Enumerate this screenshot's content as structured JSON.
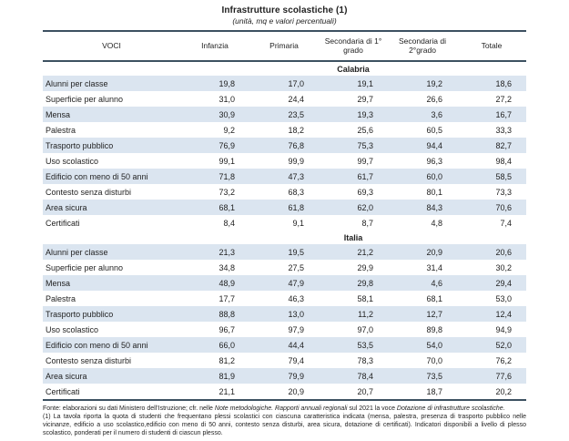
{
  "page": {
    "title": "Infrastrutture scolastiche (1)",
    "subtitle": "(unità, mq e valori percentuali)"
  },
  "table": {
    "columns": [
      "VOCI",
      "Infanzia",
      "Primaria",
      "Secondaria di 1° grado",
      "Secondaria di 2°grado",
      "Totale"
    ],
    "sections": [
      {
        "name": "Calabria",
        "rows": [
          {
            "label": "Alunni per classe",
            "values": [
              "19,8",
              "17,0",
              "19,1",
              "19,2",
              "18,6"
            ]
          },
          {
            "label": "Superficie per alunno",
            "values": [
              "31,0",
              "24,4",
              "29,7",
              "26,6",
              "27,2"
            ]
          },
          {
            "label": "Mensa",
            "values": [
              "30,9",
              "23,5",
              "19,3",
              "3,6",
              "16,7"
            ]
          },
          {
            "label": "Palestra",
            "values": [
              "9,2",
              "18,2",
              "25,6",
              "60,5",
              "33,3"
            ]
          },
          {
            "label": "Trasporto pubblico",
            "values": [
              "76,9",
              "76,8",
              "75,3",
              "94,4",
              "82,7"
            ]
          },
          {
            "label": "Uso scolastico",
            "values": [
              "99,1",
              "99,9",
              "99,7",
              "96,3",
              "98,4"
            ]
          },
          {
            "label": "Edificio con meno di 50 anni",
            "values": [
              "71,8",
              "47,3",
              "61,7",
              "60,0",
              "58,5"
            ]
          },
          {
            "label": "Contesto senza disturbi",
            "values": [
              "73,2",
              "68,3",
              "69,3",
              "80,1",
              "73,3"
            ]
          },
          {
            "label": "Area sicura",
            "values": [
              "68,1",
              "61,8",
              "62,0",
              "84,3",
              "70,6"
            ]
          },
          {
            "label": "Certificati",
            "values": [
              "8,4",
              "9,1",
              "8,7",
              "4,8",
              "7,4"
            ]
          }
        ]
      },
      {
        "name": "Italia",
        "rows": [
          {
            "label": "Alunni per classe",
            "values": [
              "21,3",
              "19,5",
              "21,2",
              "20,9",
              "20,6"
            ]
          },
          {
            "label": "Superficie per alunno",
            "values": [
              "34,8",
              "27,5",
              "29,9",
              "31,4",
              "30,2"
            ]
          },
          {
            "label": "Mensa",
            "values": [
              "48,9",
              "47,9",
              "29,8",
              "4,6",
              "29,4"
            ]
          },
          {
            "label": "Palestra",
            "values": [
              "17,7",
              "46,3",
              "58,1",
              "68,1",
              "53,0"
            ]
          },
          {
            "label": "Trasporto pubblico",
            "values": [
              "88,8",
              "13,0",
              "11,2",
              "12,7",
              "12,4"
            ]
          },
          {
            "label": "Uso scolastico",
            "values": [
              "96,7",
              "97,9",
              "97,0",
              "89,8",
              "94,9"
            ]
          },
          {
            "label": "Edificio con meno di 50 anni",
            "values": [
              "66,0",
              "44,4",
              "53,5",
              "54,0",
              "52,0"
            ]
          },
          {
            "label": "Contesto senza disturbi",
            "values": [
              "81,2",
              "79,4",
              "78,3",
              "70,0",
              "76,2"
            ]
          },
          {
            "label": "Area sicura",
            "values": [
              "81,9",
              "79,9",
              "78,4",
              "73,5",
              "77,6"
            ]
          },
          {
            "label": "Certificati",
            "values": [
              "21,1",
              "20,9",
              "20,7",
              "18,7",
              "20,2"
            ]
          }
        ]
      }
    ]
  },
  "footnotes": {
    "fonte_parts": [
      {
        "t": "Fonte: elaborazioni su dati Ministero dell'Istruzione; cfr. nelle ",
        "i": false
      },
      {
        "t": "Note metodologiche. Rapporti annuali regionali",
        "i": true
      },
      {
        "t": " sul 2021 la voce ",
        "i": false
      },
      {
        "t": "Dotazione di infrastrutture scolastiche",
        "i": true
      },
      {
        "t": ".",
        "i": false
      }
    ],
    "note": "(1) La tavola riporta la quota di studenti che frequentano plessi scolastici con ciascuna caratteristica indicata (mensa, palestra, presenza di trasporto pubblico nelle vicinanze, edificio a uso scolastico,edificio con meno di 50 anni, contesto senza disturbi, area sicura, dotazione di certificati). Indicatori disponibili a livello di plesso scolastico, ponderati per il numero di studenti di ciascun plesso."
  },
  "colors": {
    "stripe": "#dbe5f0",
    "rule": "#3d5161",
    "text": "#1f1f1f"
  }
}
